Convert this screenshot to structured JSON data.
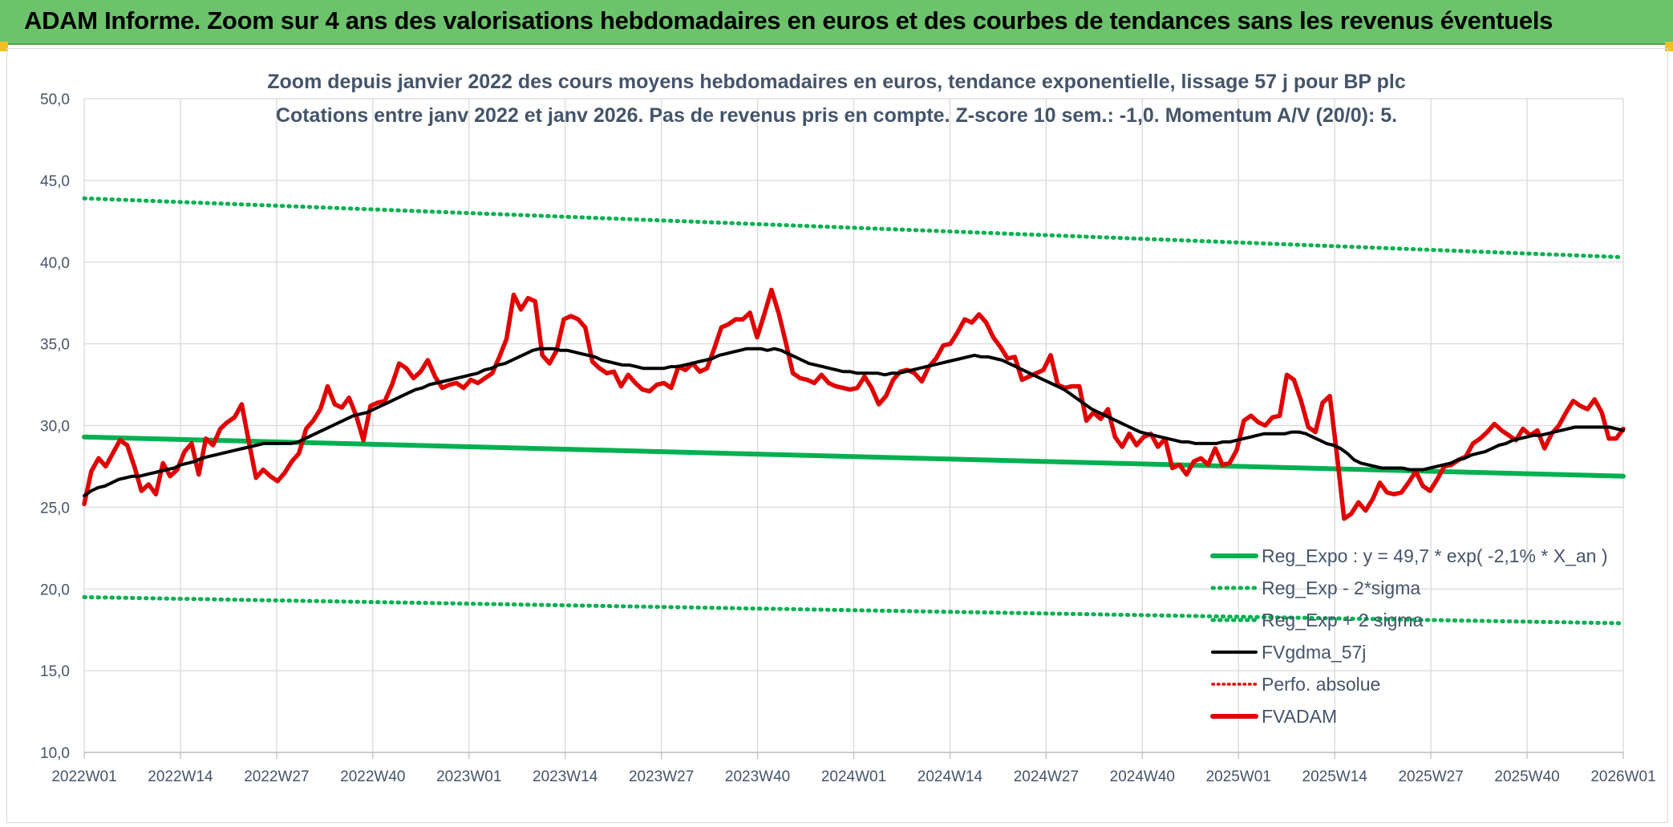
{
  "header": {
    "title": "ADAM Informe. Zoom sur 4 ans des valorisations hebdomadaires en euros et des courbes de tendances sans les revenus éventuels"
  },
  "colors": {
    "header_bg": "#6cc36c",
    "reg_expo": "#00b050",
    "fvgdma": "#000000",
    "perfo": "#e00000",
    "fvadam": "#e00000",
    "grid": "#d9d9d9",
    "text": "#44546a"
  },
  "chart_data": {
    "type": "line",
    "title": "Zoom depuis janvier 2022 des cours moyens hebdomadaires en euros, tendance exponentielle, lissage 57 j pour BP plc",
    "subtitle": "Cotations entre janv 2022 et janv 2026. Pas de revenus pris en compte. Z-score 10 sem.: -1,0. Momentum A/V (20/0): 5.",
    "xlabel": "",
    "ylabel": "",
    "ylim": [
      10,
      50
    ],
    "yticks": [
      "10,0",
      "15,0",
      "20,0",
      "25,0",
      "30,0",
      "35,0",
      "40,0",
      "45,0",
      "50,0"
    ],
    "xticks": [
      "2022W01",
      "2022W14",
      "2022W27",
      "2022W40",
      "2023W01",
      "2023W14",
      "2023W27",
      "2023W40",
      "2024W01",
      "2024W14",
      "2024W27",
      "2024W40",
      "2025W01",
      "2025W14",
      "2025W27",
      "2025W40",
      "2026W01"
    ],
    "grid": true,
    "legend_position": "bottom-right",
    "series": [
      {
        "name": "Reg_Expo : y = 49,7 * exp( -2,1% *  X_an )",
        "style": "solid-thick",
        "color": "#00b050",
        "start": 29.3,
        "end": 26.9
      },
      {
        "name": "Reg_Exp - 2*sigma",
        "style": "dotted",
        "color": "#00b050",
        "start": 19.5,
        "end": 17.9
      },
      {
        "name": "Reg_Exp + 2 sigma",
        "style": "dotted",
        "color": "#00b050",
        "start": 43.9,
        "end": 40.3
      },
      {
        "name": "FVgdma_57j",
        "style": "solid",
        "color": "#000000",
        "values": [
          25.7,
          26.0,
          26.2,
          26.3,
          26.5,
          26.7,
          26.8,
          26.9,
          26.9,
          27.0,
          27.1,
          27.2,
          27.3,
          27.4,
          27.6,
          27.7,
          27.8,
          28.0,
          28.1,
          28.2,
          28.3,
          28.4,
          28.5,
          28.6,
          28.7,
          28.8,
          28.9,
          28.9,
          28.9,
          28.9,
          28.9,
          29.0,
          29.2,
          29.4,
          29.6,
          29.8,
          30.0,
          30.2,
          30.4,
          30.6,
          30.7,
          30.8,
          31.0,
          31.2,
          31.4,
          31.6,
          31.8,
          32.0,
          32.2,
          32.3,
          32.5,
          32.6,
          32.7,
          32.8,
          32.9,
          33.0,
          33.1,
          33.2,
          33.4,
          33.5,
          33.7,
          33.8,
          34.0,
          34.2,
          34.4,
          34.6,
          34.7,
          34.7,
          34.7,
          34.6,
          34.6,
          34.5,
          34.4,
          34.3,
          34.2,
          34.0,
          33.9,
          33.8,
          33.7,
          33.7,
          33.6,
          33.5,
          33.5,
          33.5,
          33.5,
          33.6,
          33.6,
          33.7,
          33.8,
          33.9,
          34.0,
          34.1,
          34.3,
          34.4,
          34.5,
          34.6,
          34.7,
          34.7,
          34.7,
          34.6,
          34.7,
          34.6,
          34.4,
          34.2,
          34.0,
          33.8,
          33.7,
          33.6,
          33.5,
          33.4,
          33.3,
          33.3,
          33.2,
          33.2,
          33.2,
          33.2,
          33.1,
          33.2,
          33.2,
          33.3,
          33.4,
          33.5,
          33.6,
          33.7,
          33.8,
          33.9,
          34.0,
          34.1,
          34.2,
          34.3,
          34.2,
          34.2,
          34.1,
          34.0,
          33.8,
          33.6,
          33.4,
          33.2,
          33.0,
          32.8,
          32.6,
          32.4,
          32.2,
          31.9,
          31.6,
          31.3,
          31.0,
          30.8,
          30.6,
          30.4,
          30.2,
          30.0,
          29.8,
          29.6,
          29.5,
          29.4,
          29.3,
          29.2,
          29.1,
          29.0,
          29.0,
          28.9,
          28.9,
          28.9,
          28.9,
          29.0,
          29.0,
          29.1,
          29.2,
          29.3,
          29.4,
          29.5,
          29.5,
          29.5,
          29.5,
          29.6,
          29.6,
          29.5,
          29.3,
          29.1,
          28.9,
          28.8,
          28.6,
          28.3,
          27.9,
          27.7,
          27.6,
          27.5,
          27.4,
          27.4,
          27.4,
          27.4,
          27.3,
          27.3,
          27.3,
          27.4,
          27.5,
          27.6,
          27.7,
          27.9,
          28.0,
          28.2,
          28.3,
          28.4,
          28.6,
          28.8,
          28.9,
          29.1,
          29.2,
          29.3,
          29.4,
          29.4,
          29.5,
          29.6,
          29.7,
          29.8,
          29.9,
          29.9,
          29.9,
          29.9,
          29.9,
          29.9,
          29.8,
          29.7
        ]
      },
      {
        "name": "Perfo. absolue",
        "style": "dotted",
        "color": "#e00000"
      },
      {
        "name": "FVADAM",
        "style": "solid-thick",
        "color": "#e00000",
        "values": [
          25.2,
          27.2,
          28.0,
          27.5,
          28.3,
          29.1,
          28.8,
          27.5,
          26.0,
          26.4,
          25.8,
          27.7,
          26.9,
          27.3,
          28.4,
          28.9,
          27.0,
          29.2,
          28.8,
          29.8,
          30.2,
          30.5,
          31.3,
          29.0,
          26.8,
          27.3,
          26.9,
          26.6,
          27.1,
          27.8,
          28.3,
          29.8,
          30.3,
          31.0,
          32.4,
          31.3,
          31.1,
          31.7,
          30.6,
          29.1,
          31.2,
          31.4,
          31.5,
          32.5,
          33.8,
          33.5,
          32.9,
          33.3,
          34.0,
          33.0,
          32.3,
          32.5,
          32.6,
          32.3,
          32.8,
          32.6,
          32.9,
          33.2,
          34.2,
          35.3,
          38.0,
          37.1,
          37.8,
          37.6,
          34.3,
          33.8,
          34.6,
          36.5,
          36.7,
          36.5,
          36.0,
          33.9,
          33.5,
          33.2,
          33.3,
          32.4,
          33.1,
          32.6,
          32.2,
          32.1,
          32.5,
          32.6,
          32.3,
          33.6,
          33.4,
          33.8,
          33.3,
          33.5,
          34.7,
          36.0,
          36.2,
          36.5,
          36.5,
          36.9,
          35.4,
          36.8,
          38.3,
          36.9,
          35.1,
          33.2,
          32.9,
          32.8,
          32.6,
          33.1,
          32.6,
          32.4,
          32.3,
          32.2,
          32.3,
          33.0,
          32.3,
          31.3,
          31.8,
          32.8,
          33.3,
          33.4,
          33.2,
          32.7,
          33.6,
          34.1,
          34.9,
          35.0,
          35.7,
          36.5,
          36.3,
          36.8,
          36.3,
          35.4,
          34.8,
          34.1,
          34.2,
          32.8,
          33.0,
          33.2,
          33.4,
          34.3,
          32.5,
          32.3,
          32.4,
          32.4,
          30.3,
          30.8,
          30.4,
          31.0,
          29.3,
          28.7,
          29.5,
          28.8,
          29.3,
          29.5,
          28.7,
          29.2,
          27.4,
          27.6,
          27.0,
          27.8,
          28.0,
          27.6,
          28.6,
          27.6,
          27.7,
          28.5,
          30.3,
          30.6,
          30.2,
          30.0,
          30.5,
          30.6,
          33.1,
          32.8,
          31.5,
          29.9,
          29.6,
          31.4,
          31.8,
          28.2,
          24.3,
          24.6,
          25.3,
          24.8,
          25.5,
          26.5,
          25.9,
          25.8,
          25.9,
          26.5,
          27.2,
          26.3,
          26.0,
          26.7,
          27.5,
          27.6,
          27.9,
          28.1,
          28.9,
          29.2,
          29.6,
          30.1,
          29.7,
          29.4,
          29.1,
          29.8,
          29.4,
          29.7,
          28.6,
          29.5,
          30.0,
          30.8,
          31.5,
          31.2,
          31.0,
          31.6,
          30.8,
          29.2,
          29.2,
          29.8
        ]
      }
    ]
  }
}
